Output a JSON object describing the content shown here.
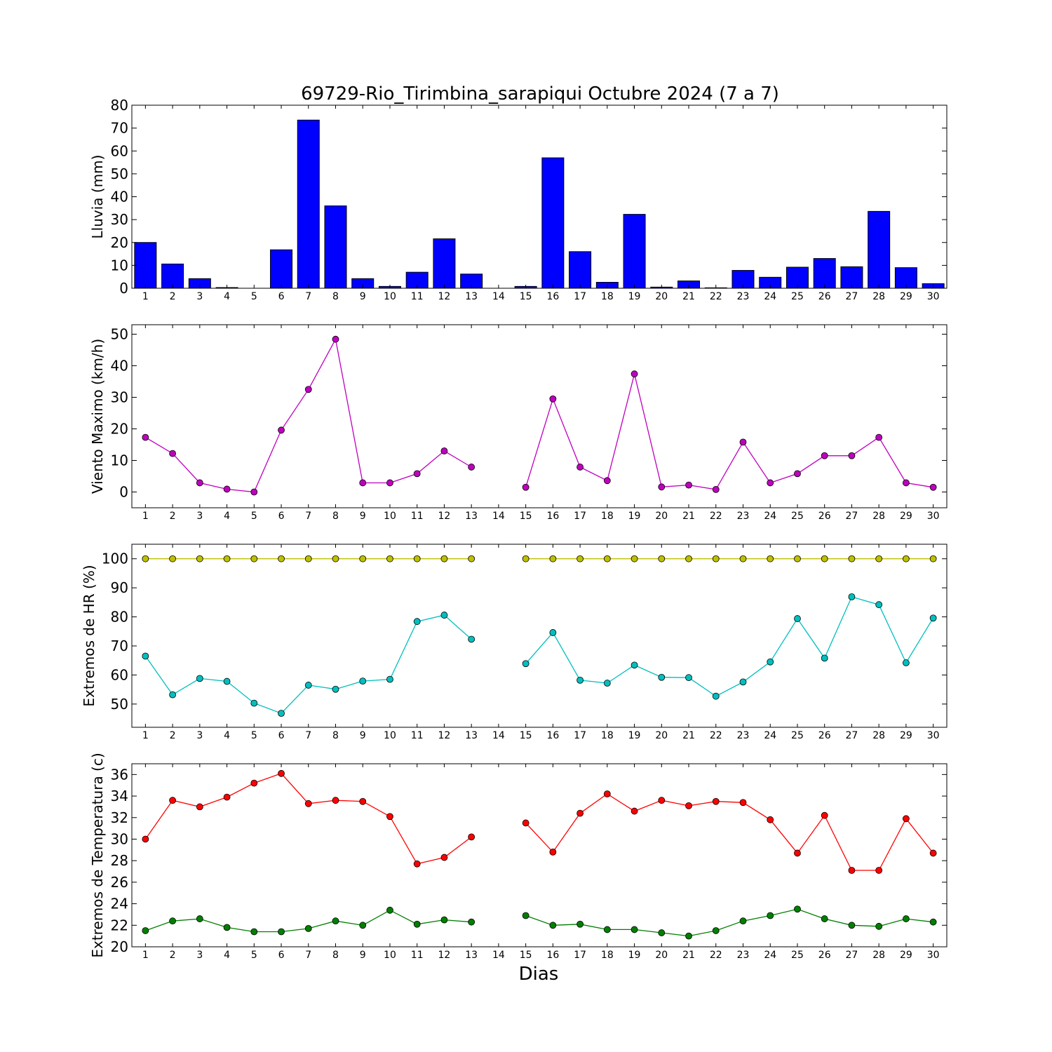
{
  "figure": {
    "title": "69729-Rio_Tirimbina_sarapiqui Octubre 2024  (7 a 7)",
    "xlabel": "Dias"
  },
  "chart_data": [
    {
      "id": "rain",
      "type": "bar",
      "ylabel": "Lluvia (mm)",
      "categories": [
        1,
        2,
        3,
        4,
        5,
        6,
        7,
        8,
        9,
        10,
        11,
        12,
        13,
        14,
        15,
        16,
        17,
        18,
        19,
        20,
        21,
        22,
        23,
        24,
        25,
        26,
        27,
        28,
        29,
        30
      ],
      "series": [
        {
          "color": "#0000ff",
          "values": [
            20,
            10.6,
            4.2,
            0.3,
            0,
            16.8,
            73.5,
            36,
            4.2,
            0.8,
            7,
            21.6,
            6.2,
            0,
            0.8,
            57,
            16,
            2.6,
            32.3,
            0.5,
            3.2,
            0.2,
            7.8,
            4.8,
            9.2,
            13,
            9.4,
            33.6,
            9,
            2
          ]
        }
      ],
      "xlim": [
        0.5,
        30.5
      ],
      "ylim": [
        0,
        80
      ],
      "yticks": [
        0,
        10,
        20,
        30,
        40,
        50,
        60,
        70,
        80
      ],
      "grid": false
    },
    {
      "id": "wind",
      "type": "line",
      "ylabel": "Viento Maximo (km/h)",
      "x": [
        1,
        2,
        3,
        4,
        5,
        6,
        7,
        8,
        9,
        10,
        11,
        12,
        13,
        14,
        15,
        16,
        17,
        18,
        19,
        20,
        21,
        22,
        23,
        24,
        25,
        26,
        27,
        28,
        29,
        30
      ],
      "series": [
        {
          "color": "#bf00bf",
          "values": [
            17.3,
            12.2,
            2.9,
            0.9,
            0,
            19.6,
            32.5,
            48.4,
            2.9,
            2.9,
            5.8,
            13,
            7.9,
            null,
            1.5,
            29.5,
            7.9,
            3.6,
            37.4,
            1.6,
            2.2,
            0.8,
            15.8,
            2.9,
            5.8,
            11.5,
            11.5,
            17.3,
            2.9,
            1.5
          ]
        }
      ],
      "xlim": [
        0.5,
        30.5
      ],
      "ylim": [
        -5,
        53
      ],
      "yticks": [
        0,
        10,
        20,
        30,
        40,
        50
      ],
      "grid": false
    },
    {
      "id": "humidity",
      "type": "line",
      "ylabel": "Extremos de HR (%)",
      "x": [
        1,
        2,
        3,
        4,
        5,
        6,
        7,
        8,
        9,
        10,
        11,
        12,
        13,
        14,
        15,
        16,
        17,
        18,
        19,
        20,
        21,
        22,
        23,
        24,
        25,
        26,
        27,
        28,
        29,
        30
      ],
      "series": [
        {
          "color": "#bfbf00",
          "values": [
            100,
            100,
            100,
            100,
            100,
            100,
            100,
            100,
            100,
            100,
            100,
            100,
            100,
            null,
            100,
            100,
            100,
            100,
            100,
            100,
            100,
            100,
            100,
            100,
            100,
            100,
            100,
            100,
            100,
            100
          ]
        },
        {
          "color": "#00bfbf",
          "values": [
            66.5,
            53.2,
            58.8,
            57.8,
            50.3,
            46.8,
            56.5,
            55.1,
            57.9,
            58.5,
            78.4,
            80.6,
            72.3,
            null,
            63.9,
            74.6,
            58.2,
            57.2,
            63.4,
            59.2,
            59.1,
            52.7,
            57.6,
            64.5,
            79.4,
            65.8,
            86.9,
            84.2,
            64.2,
            79.6
          ]
        }
      ],
      "xlim": [
        0.5,
        30.5
      ],
      "ylim": [
        42,
        105
      ],
      "yticks": [
        50,
        60,
        70,
        80,
        90,
        100
      ],
      "grid": false
    },
    {
      "id": "temperature",
      "type": "line",
      "ylabel": "Extremos de Temperatura (c)",
      "x": [
        1,
        2,
        3,
        4,
        5,
        6,
        7,
        8,
        9,
        10,
        11,
        12,
        13,
        14,
        15,
        16,
        17,
        18,
        19,
        20,
        21,
        22,
        23,
        24,
        25,
        26,
        27,
        28,
        29,
        30
      ],
      "series": [
        {
          "color": "#ff0000",
          "values": [
            30,
            33.6,
            33,
            33.9,
            35.2,
            36.1,
            33.3,
            33.6,
            33.5,
            32.1,
            27.7,
            28.3,
            30.2,
            null,
            31.5,
            28.8,
            32.4,
            34.2,
            32.6,
            33.6,
            33.1,
            33.5,
            33.4,
            31.8,
            28.7,
            32.2,
            27.1,
            27.1,
            31.9,
            28.7
          ]
        },
        {
          "color": "#007f00",
          "values": [
            21.5,
            22.4,
            22.6,
            21.8,
            21.4,
            21.4,
            21.7,
            22.4,
            22,
            23.4,
            22.1,
            22.5,
            22.3,
            null,
            22.9,
            22,
            22.1,
            21.6,
            21.6,
            21.3,
            21,
            21.5,
            22.4,
            22.9,
            23.5,
            22.6,
            22,
            21.9,
            22.6,
            22.3
          ]
        }
      ],
      "xlim": [
        0.5,
        30.5
      ],
      "ylim": [
        20,
        37
      ],
      "yticks": [
        20,
        22,
        24,
        26,
        28,
        30,
        32,
        34,
        36
      ],
      "grid": false
    }
  ]
}
